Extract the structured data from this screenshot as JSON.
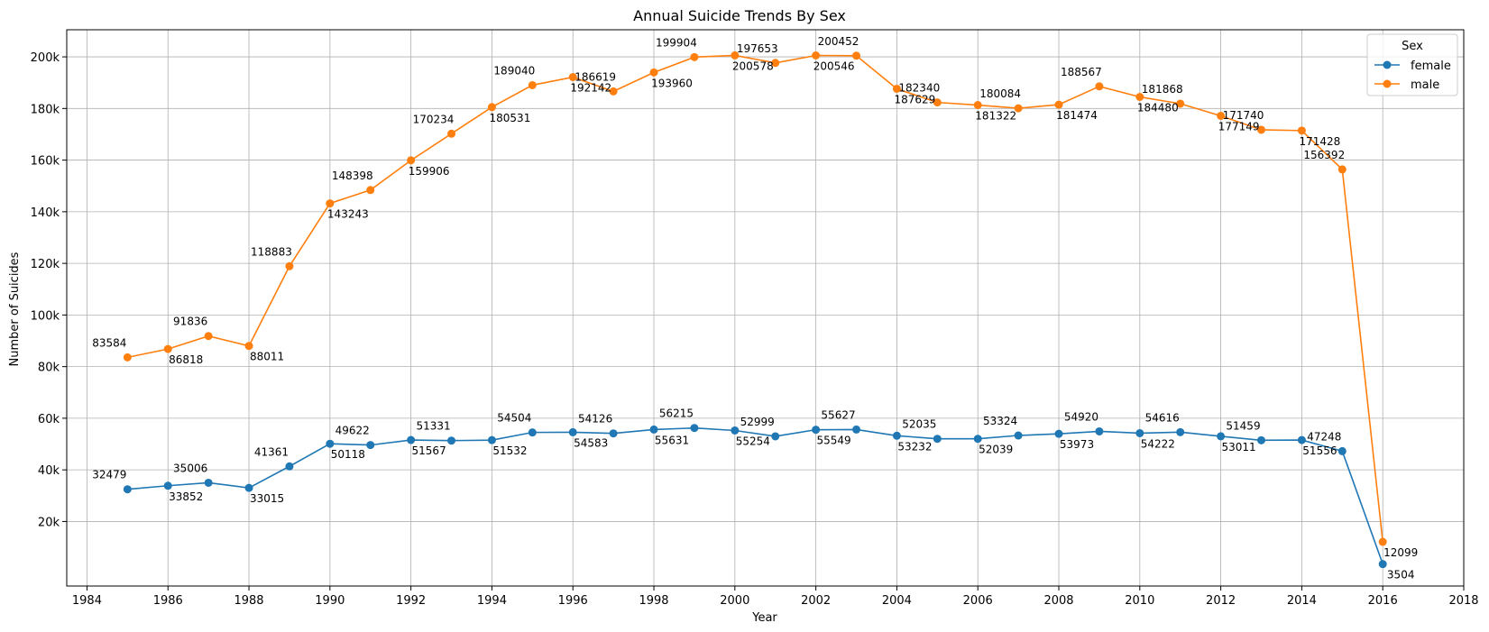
{
  "chart_data": {
    "type": "line",
    "title": "Annual Suicide Trends By Sex",
    "xlabel": "Year",
    "ylabel": "Number of Suicides",
    "xlim": [
      1983.5,
      2018
    ],
    "ylim": [
      -5000,
      210500
    ],
    "x_ticks": [
      1984,
      1986,
      1988,
      1990,
      1992,
      1994,
      1996,
      1998,
      2000,
      2002,
      2004,
      2006,
      2008,
      2010,
      2012,
      2014,
      2016,
      2018
    ],
    "y_ticks": [
      20000,
      40000,
      60000,
      80000,
      100000,
      120000,
      140000,
      160000,
      180000,
      200000
    ],
    "y_tick_labels": [
      "20k",
      "40k",
      "60k",
      "80k",
      "100k",
      "120k",
      "140k",
      "160k",
      "180k",
      "200k"
    ],
    "grid": true,
    "legend": {
      "title": "Sex",
      "placement": "top-right"
    },
    "x": [
      1985,
      1986,
      1987,
      1988,
      1989,
      1990,
      1991,
      1992,
      1993,
      1994,
      1995,
      1996,
      1997,
      1998,
      1999,
      2000,
      2001,
      2002,
      2003,
      2004,
      2005,
      2006,
      2007,
      2008,
      2009,
      2010,
      2011,
      2012,
      2013,
      2014,
      2015,
      2016
    ],
    "series": [
      {
        "name": "female",
        "color": "#1f77b4",
        "values": [
          32479,
          33852,
          35006,
          33015,
          41361,
          50118,
          49622,
          51567,
          51331,
          51532,
          54504,
          54583,
          54126,
          55631,
          56215,
          55254,
          52999,
          55549,
          55627,
          53232,
          52035,
          52039,
          53324,
          53973,
          54920,
          54222,
          54616,
          53011,
          51459,
          51556,
          47248,
          3504
        ]
      },
      {
        "name": "male",
        "color": "#ff7f0e",
        "values": [
          83584,
          86818,
          91836,
          88011,
          118883,
          143243,
          148398,
          159906,
          170234,
          180531,
          189040,
          192142,
          186619,
          193960,
          199904,
          200578,
          197653,
          200546,
          200452,
          187629,
          182340,
          181322,
          180084,
          181474,
          188567,
          184480,
          181868,
          177149,
          171740,
          171428,
          156392,
          12099
        ]
      }
    ],
    "annotations": {
      "female": [
        "32479",
        "33852",
        "35006",
        "33015",
        "41361",
        "50118",
        "49622",
        "51567",
        "51331",
        "51532",
        "54504",
        "54583",
        "54126",
        "55631",
        "56215",
        "55254",
        "52999",
        "55549",
        "55627",
        "53232",
        "52035",
        "52039",
        "53324",
        "53973",
        "54920",
        "54222",
        "54616",
        "53011",
        "51459",
        "51556",
        "47248",
        "3504"
      ],
      "male": [
        "83584",
        "86818",
        "91836",
        "88011",
        "118883",
        "143243",
        "148398",
        "159906",
        "170234",
        "180531",
        "189040",
        "192142",
        "186619",
        "193960",
        "199904",
        "200578",
        "197653",
        "200546",
        "200452",
        "187629",
        "182340",
        "181322",
        "180084",
        "181474",
        "188567",
        "184480",
        "181868",
        "177149",
        "171740",
        "171428",
        "156392",
        "12099"
      ]
    }
  }
}
